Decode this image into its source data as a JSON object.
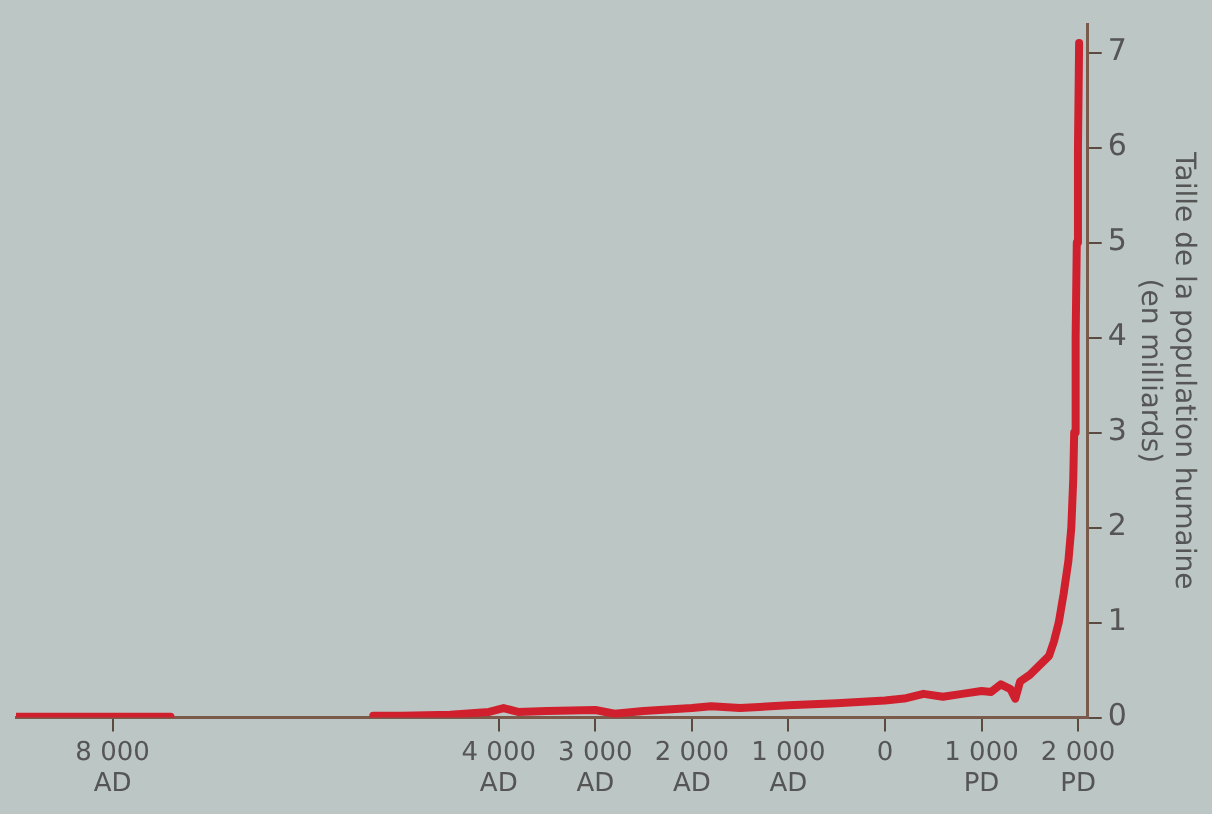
{
  "chart_data": {
    "type": "line",
    "xlim": [
      -9000,
      2100
    ],
    "xticks": [
      {
        "value": -8000,
        "label": "8 000\nAD"
      },
      {
        "value": -4000,
        "label": "4 000\nAD"
      },
      {
        "value": -3000,
        "label": "3 000\nAD"
      },
      {
        "value": -2000,
        "label": "2 000\nAD"
      },
      {
        "value": -1000,
        "label": "1 000\nAD"
      },
      0,
      {
        "value": 1000,
        "label": "1 000\nPD"
      },
      {
        "value": 2000,
        "label": "2 000\nPD"
      }
    ],
    "ylim": [
      0,
      7.3
    ],
    "yticks": [
      0,
      1,
      2,
      3,
      4,
      5,
      6,
      7
    ],
    "ylabel": "Taille de la population humaine\n(en milliards)",
    "series": [
      {
        "color": "#d0202e",
        "x": [
          -9000,
          -8500,
          -8000,
          -7400
        ],
        "values": [
          0.01,
          0.01,
          0.01,
          0.01
        ]
      },
      {
        "color": "#d0202e",
        "x": [
          -5300,
          -5000,
          -4500,
          -4100,
          -3950,
          -3800,
          -3500,
          -3000,
          -2800,
          -2500,
          -2000,
          -1800,
          -1500,
          -1000,
          -500,
          0,
          200,
          400,
          600,
          800,
          1000,
          1100,
          1200,
          1300,
          1350,
          1400,
          1500,
          1600,
          1700,
          1750,
          1800,
          1850,
          1900,
          1930,
          1950,
          1960,
          1975,
          1987,
          1999,
          2011
        ],
        "values": [
          0.02,
          0.02,
          0.03,
          0.06,
          0.1,
          0.06,
          0.07,
          0.08,
          0.04,
          0.07,
          0.1,
          0.12,
          0.1,
          0.13,
          0.15,
          0.18,
          0.2,
          0.25,
          0.22,
          0.25,
          0.28,
          0.27,
          0.35,
          0.3,
          0.2,
          0.38,
          0.45,
          0.55,
          0.65,
          0.8,
          1,
          1.3,
          1.65,
          2,
          2.5,
          3,
          4,
          5,
          6,
          7.1
        ]
      }
    ]
  }
}
